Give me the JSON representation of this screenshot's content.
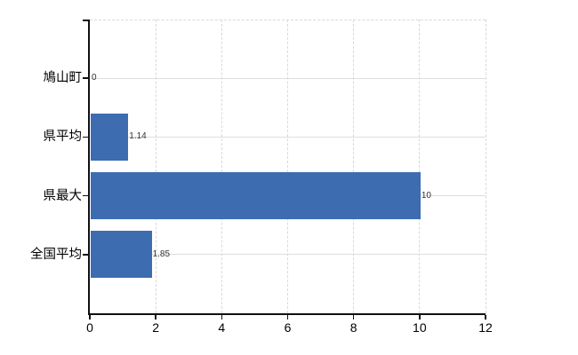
{
  "chart_data": {
    "type": "bar",
    "orientation": "horizontal",
    "title": "",
    "xlabel": "",
    "ylabel": "",
    "categories": [
      "鳩山町",
      "県平均",
      "県最大",
      "全国平均"
    ],
    "values": [
      0,
      1.14,
      10,
      1.85
    ],
    "value_labels": [
      "0",
      "1.14",
      "10",
      "1.85"
    ],
    "xlim": [
      0,
      12
    ],
    "xticks": [
      0,
      2,
      4,
      6,
      8,
      10,
      12
    ],
    "grid": true,
    "legend": false,
    "bar_color": "#3d6cb0",
    "gridline_color": "#d9d9d9",
    "axis_color": "#111111",
    "category_label_color": "#000000",
    "value_label_color": "#333333",
    "background_color": "#ffffff"
  }
}
